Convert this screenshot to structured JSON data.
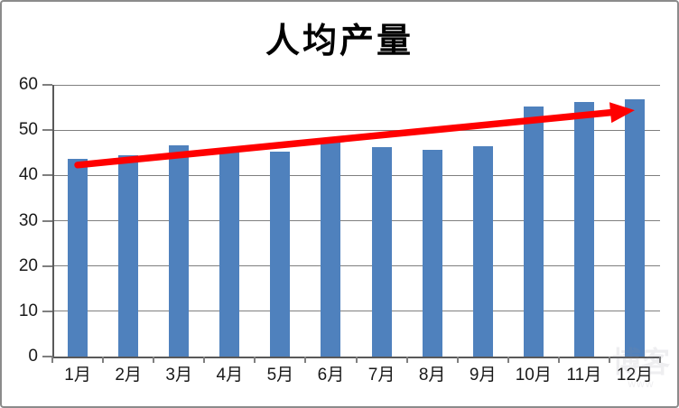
{
  "chart_data": {
    "type": "bar",
    "title": "人均产量",
    "categories": [
      "1月",
      "2月",
      "3月",
      "4月",
      "5月",
      "6月",
      "7月",
      "8月",
      "9月",
      "10月",
      "11月",
      "12月"
    ],
    "values": [
      43.7,
      44.4,
      46.6,
      46.0,
      45.3,
      47.5,
      46.3,
      45.7,
      46.5,
      55.2,
      56.3,
      56.9
    ],
    "xlabel": "",
    "ylabel": "",
    "ylim": [
      0,
      60
    ],
    "yticks": [
      0,
      10,
      20,
      30,
      40,
      50,
      60
    ],
    "grid": "horizontal",
    "legend": "none",
    "colors": {
      "bar": "#4F81BD",
      "gridline": "#7f7f7f",
      "axis": "#595959",
      "labels": "#1a1a1a",
      "arrow": "#FF0000"
    },
    "trend_arrow": {
      "from": {
        "category": "1月",
        "value": 42.3
      },
      "to": {
        "category": "12月",
        "value": 54.4
      }
    }
  },
  "watermark": {
    "logo_text": "博客",
    "url_text": "www"
  }
}
